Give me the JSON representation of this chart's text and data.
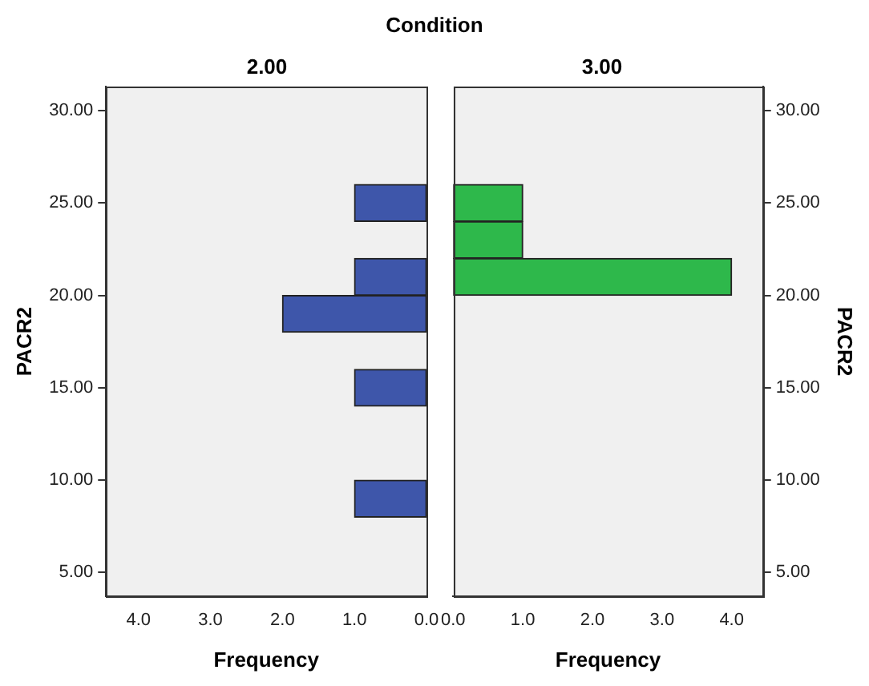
{
  "chart_data": [
    {
      "type": "histogram",
      "orientation": "horizontal",
      "title": "Condition",
      "subtitle": "2.00",
      "xlabel": "Frequency",
      "ylabel": "PACR2",
      "color": "#3e56aa",
      "bins": [
        8,
        10,
        12,
        14,
        16,
        18,
        20,
        22,
        24,
        26
      ],
      "values": [
        1,
        0,
        0,
        1,
        0,
        2,
        1,
        0,
        1
      ],
      "xlim": [
        4.45,
        0
      ],
      "xticks": [
        {
          "value": 0,
          "label": "0.0"
        },
        {
          "value": 1,
          "label": "1.0"
        },
        {
          "value": 2,
          "label": "2.0"
        },
        {
          "value": 3,
          "label": "3.0"
        },
        {
          "value": 4,
          "label": "4.0"
        }
      ],
      "ylim": [
        3.7,
        31.3
      ],
      "yticks": [
        {
          "value": 5,
          "label": "5.00"
        },
        {
          "value": 10,
          "label": "10.00"
        },
        {
          "value": 15,
          "label": "15.00"
        },
        {
          "value": 20,
          "label": "20.00"
        },
        {
          "value": 25,
          "label": "25.00"
        },
        {
          "value": 30,
          "label": "30.00"
        }
      ],
      "grid": false,
      "legend": false
    },
    {
      "type": "histogram",
      "orientation": "horizontal",
      "subtitle": "3.00",
      "xlabel": "Frequency",
      "ylabel": "PACR2",
      "color": "#2eb84b",
      "bins": [
        20,
        22,
        24,
        26
      ],
      "values": [
        4,
        1,
        1
      ],
      "xlim": [
        0,
        4.45
      ],
      "xticks": [
        {
          "value": 0,
          "label": "0.0"
        },
        {
          "value": 1,
          "label": "1.0"
        },
        {
          "value": 2,
          "label": "2.0"
        },
        {
          "value": 3,
          "label": "3.0"
        },
        {
          "value": 4,
          "label": "4.0"
        }
      ],
      "ylim": [
        3.7,
        31.3
      ],
      "yticks": [
        {
          "value": 5,
          "label": "5.00"
        },
        {
          "value": 10,
          "label": "10.00"
        },
        {
          "value": 15,
          "label": "15.00"
        },
        {
          "value": 20,
          "label": "20.00"
        },
        {
          "value": 25,
          "label": "25.00"
        },
        {
          "value": 30,
          "label": "30.00"
        }
      ],
      "grid": false,
      "legend": false
    }
  ]
}
